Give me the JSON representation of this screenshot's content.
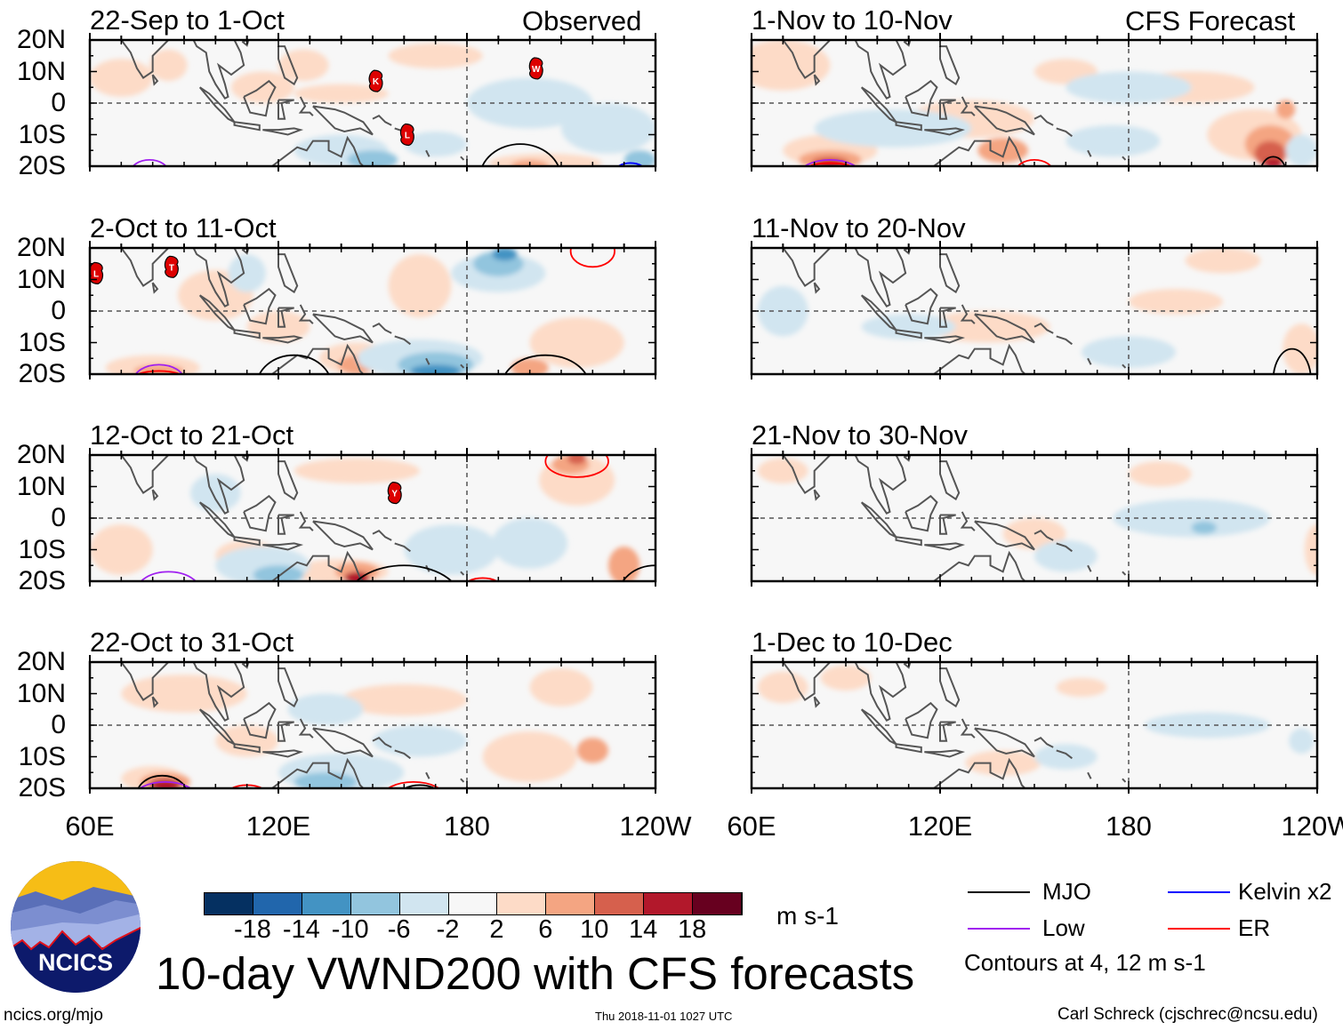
{
  "header": {
    "observed_label": "Observed",
    "forecast_label": "CFS Forecast"
  },
  "lat_labels": [
    "20N",
    "10N",
    "0",
    "10S",
    "20S"
  ],
  "lon_labels": [
    "60E",
    "120E",
    "180",
    "120W"
  ],
  "panels": [
    {
      "title": "22-Sep to 1-Oct",
      "type": "observed",
      "storms": [
        {
          "letter": "K",
          "lon": 151,
          "lat": 7
        },
        {
          "letter": "W",
          "lon": 202,
          "lat": 11
        },
        {
          "letter": "L",
          "lon": 161,
          "lat": -10
        }
      ]
    },
    {
      "title": "2-Oct to 11-Oct",
      "type": "observed",
      "storms": [
        {
          "letter": "L",
          "lon": 62,
          "lat": 12
        },
        {
          "letter": "T",
          "lon": 86,
          "lat": 14
        }
      ]
    },
    {
      "title": "12-Oct to 21-Oct",
      "type": "observed",
      "storms": [
        {
          "letter": "Y",
          "lon": 157,
          "lat": 8
        }
      ]
    },
    {
      "title": "22-Oct to 31-Oct",
      "type": "observed",
      "storms": []
    },
    {
      "title": "1-Nov to 10-Nov",
      "type": "forecast",
      "storms": []
    },
    {
      "title": "11-Nov to 20-Nov",
      "type": "forecast",
      "storms": []
    },
    {
      "title": "21-Nov to 30-Nov",
      "type": "forecast",
      "storms": []
    },
    {
      "title": "1-Dec to 10-Dec",
      "type": "forecast",
      "storms": []
    }
  ],
  "colorbar": {
    "colors": [
      "#053061",
      "#2166ac",
      "#4393c3",
      "#92c5de",
      "#d1e5f0",
      "#f7f7f7",
      "#fddbc7",
      "#f4a582",
      "#d6604d",
      "#b2182b",
      "#67001f"
    ],
    "labels": [
      "-18",
      "-14",
      "-10",
      "-6",
      "-2",
      "2",
      "6",
      "10",
      "14",
      "18"
    ],
    "units": "m s-1"
  },
  "legend": {
    "items": [
      {
        "label": "MJO",
        "color": "#000000"
      },
      {
        "label": "Kelvin x2",
        "color": "#0000ff"
      },
      {
        "label": "Low",
        "color": "#a020f0"
      },
      {
        "label": "ER",
        "color": "#ff0000"
      }
    ],
    "note": "Contours at 4, 12 m s-1"
  },
  "footer": {
    "title": "10-day VWND200 with CFS forecasts",
    "url": "ncics.org/mjo",
    "timestamp": "Thu 2018-11-01 1027 UTC",
    "credit": "Carl Schreck (cjschrec@ncsu.edu)",
    "logo_text": "NCICS"
  }
}
